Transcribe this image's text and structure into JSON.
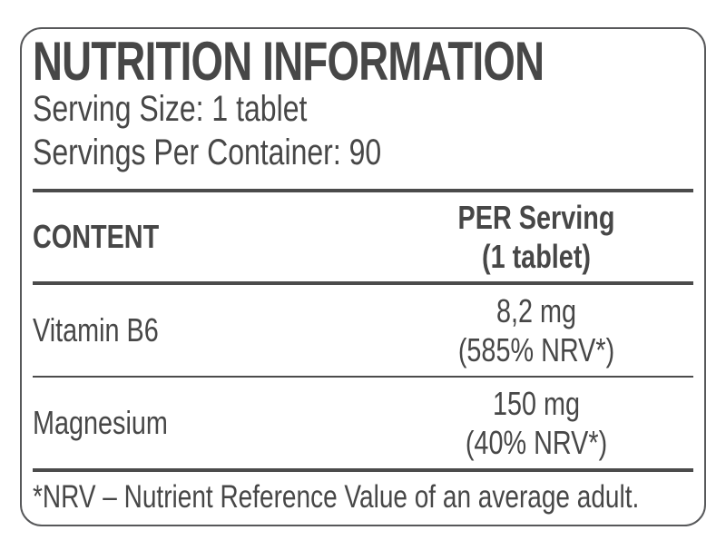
{
  "label": {
    "title": "NUTRITION INFORMATION",
    "serving_size": "Serving Size: 1 tablet",
    "servings_per_container": "Servings Per Container: 90",
    "table": {
      "header": {
        "content": "CONTENT",
        "per_serving_line1": "PER Serving",
        "per_serving_line2": "(1 tablet)"
      },
      "rows": [
        {
          "name": "Vitamin B6",
          "amount": "8,2 mg",
          "nrv": "(585% NRV*)"
        },
        {
          "name": "Magnesium",
          "amount": "150 mg",
          "nrv": "(40% NRV*)"
        }
      ]
    },
    "footnote": "*NRV – Nutrient Reference Value of an average adult."
  },
  "colors": {
    "text": "#474747",
    "rule_lines": "#4b4b4b",
    "border": "#57585a",
    "background": "#ffffff"
  }
}
